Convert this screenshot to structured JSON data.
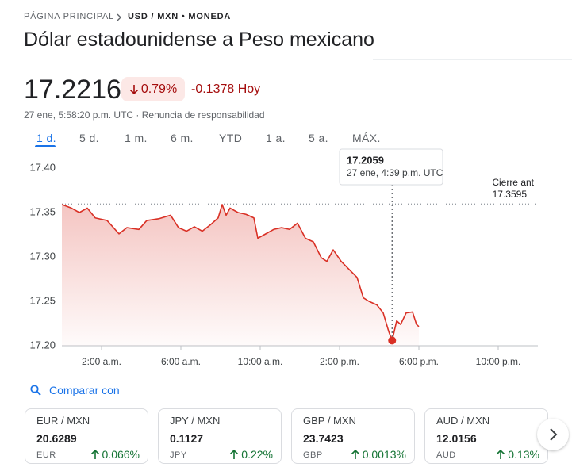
{
  "breadcrumb": [
    "PÁGINA PRINCIPAL",
    "USD / MXN • MONEDA"
  ],
  "title": "Dólar estadounidense a Peso mexicano",
  "price": "17.2216",
  "change_percent": "0.79%",
  "change_today": "-0.1378 Hoy",
  "timestamp": "27 ene, 5:58:20 p.m. UTC · Renuncia de responsabilidad",
  "tabs": [
    "1 d.",
    "5 d.",
    "1 m.",
    "6 m.",
    "YTD",
    "1 a.",
    "5 a.",
    "MÁX."
  ],
  "chart_data": {
    "type": "line",
    "x": [
      0,
      0.48,
      0.88,
      1.28,
      1.68,
      2.28,
      2.88,
      3.28,
      3.88,
      4.28,
      4.88,
      5.48,
      5.88,
      6.28,
      6.68,
      7.08,
      7.48,
      7.88,
      8.08,
      8.28,
      8.48,
      8.88,
      9.28,
      9.68,
      9.88,
      10.28,
      10.68,
      11.08,
      11.48,
      11.88,
      12.28,
      12.68,
      13.08,
      13.36,
      13.68,
      14.08,
      14.48,
      14.88,
      15.2,
      15.48,
      15.88,
      16.2,
      16.48,
      16.65,
      16.88,
      17.08,
      17.36,
      17.68,
      17.88,
      18.0
    ],
    "series": [
      {
        "color": "#d93025",
        "values": [
          17.359,
          17.355,
          17.35,
          17.355,
          17.344,
          17.341,
          17.326,
          17.333,
          17.331,
          17.341,
          17.343,
          17.347,
          17.333,
          17.329,
          17.334,
          17.329,
          17.336,
          17.344,
          17.359,
          17.347,
          17.355,
          17.35,
          17.348,
          17.344,
          17.321,
          17.326,
          17.331,
          17.333,
          17.331,
          17.338,
          17.321,
          17.317,
          17.299,
          17.295,
          17.308,
          17.295,
          17.286,
          17.277,
          17.254,
          17.25,
          17.246,
          17.237,
          17.216,
          17.2059,
          17.228,
          17.224,
          17.237,
          17.238,
          17.224,
          17.2216
        ]
      }
    ],
    "xlim": [
      0,
      24
    ],
    "xticks": [
      {
        "value": 2,
        "label": "2:00 a.m."
      },
      {
        "value": 6,
        "label": "6:00 a.m."
      },
      {
        "value": 10,
        "label": "10:00 a.m."
      },
      {
        "value": 14,
        "label": "2:00 p.m."
      },
      {
        "value": 18,
        "label": "6:00 p.m."
      },
      {
        "value": 22,
        "label": "10:00 p.m."
      }
    ],
    "ylim": [
      17.2,
      17.4
    ],
    "yticks": [
      {
        "value": 17.4,
        "label": "17.40"
      },
      17.35,
      {
        "value": 17.3,
        "label": "17.30"
      },
      17.25,
      {
        "value": 17.2,
        "label": "17.20"
      }
    ],
    "grid": false,
    "prev_close": {
      "label": "Cierre ant",
      "value": 17.3595
    },
    "tooltip": {
      "x": 16.65,
      "value": 17.2059,
      "label": "27 ene, 4:39 p.m. UTC"
    }
  },
  "compare_label": "Comparar con",
  "compare": [
    {
      "pair": "EUR / MXN",
      "price": "20.6289",
      "code": "EUR",
      "change": "0.066%"
    },
    {
      "pair": "JPY / MXN",
      "price": "0.1127",
      "code": "JPY",
      "change": "0.22%"
    },
    {
      "pair": "GBP / MXN",
      "price": "23.7423",
      "code": "GBP",
      "change": "0.0013%"
    },
    {
      "pair": "AUD / MXN",
      "price": "12.0156",
      "code": "AUD",
      "change": "0.13%"
    }
  ]
}
